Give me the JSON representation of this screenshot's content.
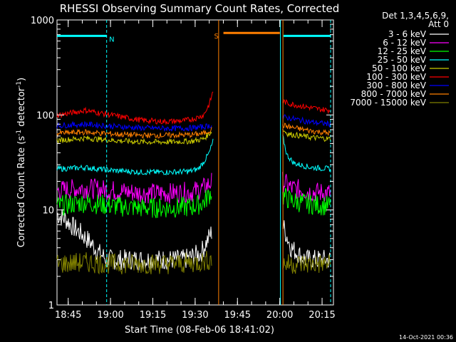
{
  "chart_data": {
    "type": "line",
    "title": "RHESSI Observing Summary Count Rates, Corrected",
    "xlabel": "Start Time (08-Feb-06 18:41:02)",
    "ylabel": "Corrected Count Rate (s",
    "ylabel_sup1": "-1",
    "ylabel_mid": " detector",
    "ylabel_sup2": "-1",
    "ylabel_end": ")",
    "yscale": "log",
    "ylim": [
      1,
      1000
    ],
    "xlim_minutes": [
      0,
      98
    ],
    "x_ticks": [
      {
        "label": "18:45",
        "minute": 3.97
      },
      {
        "label": "19:00",
        "minute": 18.97
      },
      {
        "label": "19:15",
        "minute": 33.97
      },
      {
        "label": "19:30",
        "minute": 48.97
      },
      {
        "label": "19:45",
        "minute": 63.97
      },
      {
        "label": "20:00",
        "minute": 78.97
      },
      {
        "label": "20:15",
        "minute": 93.97
      }
    ],
    "y_ticks": [
      {
        "label": "1",
        "value": 1
      },
      {
        "label": "10",
        "value": 10
      },
      {
        "label": "100",
        "value": 100
      },
      {
        "label": "1000",
        "value": 1000
      }
    ],
    "legend_header": [
      "Det 1,3,4,5,6,9,",
      "Att 0"
    ],
    "legend_position": "right",
    "timestamp": "14-Oct-2021 00:36",
    "series": [
      {
        "name": "3 - 6 keV",
        "color": "#ffffff",
        "seg1": [
          [
            0,
            9
          ],
          [
            3,
            8
          ],
          [
            6,
            6.5
          ],
          [
            9,
            5.5
          ],
          [
            12,
            4.5
          ],
          [
            15,
            3.5
          ],
          [
            18,
            3
          ],
          [
            25,
            3
          ],
          [
            35,
            3
          ],
          [
            45,
            3
          ],
          [
            51,
            3.5
          ],
          [
            55,
            6
          ]
        ],
        "seg2": [
          [
            80,
            7
          ],
          [
            83,
            4
          ],
          [
            88,
            3
          ],
          [
            97,
            3
          ]
        ]
      },
      {
        "name": "6 - 12 keV",
        "color": "#ff00ff",
        "seg1": [
          [
            0,
            16
          ],
          [
            10,
            17
          ],
          [
            20,
            16
          ],
          [
            30,
            15
          ],
          [
            40,
            15
          ],
          [
            48,
            15.5
          ],
          [
            52,
            17
          ],
          [
            55,
            20
          ]
        ],
        "seg2": [
          [
            80,
            20
          ],
          [
            83,
            17
          ],
          [
            90,
            15.5
          ],
          [
            97,
            15
          ]
        ]
      },
      {
        "name": "12 - 25 keV",
        "color": "#00ff00",
        "seg1": [
          [
            0,
            11
          ],
          [
            10,
            12
          ],
          [
            20,
            11
          ],
          [
            30,
            10.5
          ],
          [
            40,
            10.5
          ],
          [
            48,
            10.8
          ],
          [
            52,
            12
          ],
          [
            55,
            16
          ]
        ],
        "seg2": [
          [
            80,
            14
          ],
          [
            83,
            12.5
          ],
          [
            90,
            11.5
          ],
          [
            97,
            11
          ]
        ]
      },
      {
        "name": "25 - 50 keV",
        "color": "#00ffff",
        "seg1": [
          [
            0,
            27
          ],
          [
            10,
            28
          ],
          [
            20,
            26
          ],
          [
            30,
            25
          ],
          [
            40,
            25
          ],
          [
            47,
            25.5
          ],
          [
            50,
            27
          ],
          [
            52,
            32
          ],
          [
            54,
            40
          ],
          [
            55.5,
            55
          ]
        ],
        "seg2": [
          [
            80,
            60
          ],
          [
            81.5,
            38
          ],
          [
            84,
            31
          ],
          [
            90,
            28
          ],
          [
            97,
            27
          ]
        ]
      },
      {
        "name": "50 - 100 keV",
        "color": "#cccc00",
        "seg1": [
          [
            0,
            54
          ],
          [
            10,
            57
          ],
          [
            20,
            54
          ],
          [
            30,
            52
          ],
          [
            40,
            52
          ],
          [
            48,
            53
          ],
          [
            52,
            56
          ],
          [
            55,
            68
          ]
        ],
        "seg2": [
          [
            80,
            70
          ],
          [
            82,
            63
          ],
          [
            90,
            58
          ],
          [
            97,
            56
          ]
        ]
      },
      {
        "name": "100 - 300 keV",
        "color": "#ff0000",
        "seg1": [
          [
            0,
            99
          ],
          [
            5,
            105
          ],
          [
            10,
            112
          ],
          [
            15,
            105
          ],
          [
            20,
            99
          ],
          [
            25,
            93
          ],
          [
            30,
            88
          ],
          [
            38,
            85
          ],
          [
            45,
            87
          ],
          [
            49,
            92
          ],
          [
            52,
            100
          ],
          [
            54,
            130
          ],
          [
            55.5,
            185
          ]
        ],
        "seg2": [
          [
            80,
            140
          ],
          [
            82,
            132
          ],
          [
            88,
            122
          ],
          [
            93,
            115
          ],
          [
            97,
            112
          ]
        ]
      },
      {
        "name": "300 - 800 keV",
        "color": "#0000ff",
        "seg1": [
          [
            0,
            77
          ],
          [
            10,
            80
          ],
          [
            20,
            76
          ],
          [
            30,
            73
          ],
          [
            40,
            72
          ],
          [
            48,
            73
          ],
          [
            52,
            75
          ],
          [
            55,
            78
          ]
        ],
        "seg2": [
          [
            80,
            95
          ],
          [
            83,
            92
          ],
          [
            90,
            84
          ],
          [
            97,
            80
          ]
        ]
      },
      {
        "name": "800 - 7000 keV",
        "color": "#ff7f00",
        "seg1": [
          [
            0,
            64
          ],
          [
            10,
            66
          ],
          [
            20,
            63
          ],
          [
            30,
            61
          ],
          [
            40,
            61
          ],
          [
            48,
            62
          ],
          [
            52,
            64
          ],
          [
            55,
            71
          ]
        ],
        "seg2": [
          [
            80,
            78
          ],
          [
            83,
            74
          ],
          [
            90,
            68
          ],
          [
            97,
            64
          ]
        ]
      },
      {
        "name": "7000 - 15000 keV",
        "color": "#7f7f00",
        "seg1": [
          [
            0,
            2.7
          ],
          [
            10,
            2.8
          ],
          [
            20,
            2.7
          ],
          [
            30,
            2.7
          ],
          [
            40,
            2.7
          ],
          [
            50,
            2.8
          ],
          [
            55,
            3
          ]
        ],
        "seg2": [
          [
            80,
            2.7
          ],
          [
            90,
            2.7
          ],
          [
            97,
            2.7
          ]
        ]
      }
    ],
    "annotations": [
      {
        "label": "N",
        "color": "#00ffff",
        "bar_start": 0,
        "bar_end": 17.6,
        "level": 680
      },
      {
        "label": "S",
        "color": "#ff7f00",
        "bar_start": 59,
        "bar_end": 79,
        "level": 730
      },
      {
        "label": "",
        "color": "#00ffff",
        "bar_start": 80.3,
        "bar_end": 97,
        "level": 680
      }
    ],
    "vertical_lines": [
      {
        "minute": 17.6,
        "color": "#00ffff",
        "style": "dashed"
      },
      {
        "minute": 57.3,
        "color": "#ff7f00",
        "style": "solid"
      },
      {
        "minute": 79.2,
        "color": "#00ffff",
        "style": "solid"
      },
      {
        "minute": 80.1,
        "color": "#ff7f00",
        "style": "solid"
      },
      {
        "minute": 97.0,
        "color": "#00ffff",
        "style": "dashed"
      }
    ]
  }
}
